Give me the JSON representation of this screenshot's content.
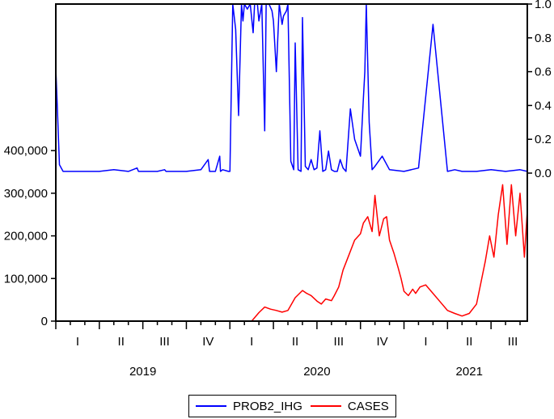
{
  "chart_data": {
    "type": "line",
    "title": "",
    "dual_axis": true,
    "x_range": [
      "2019-01-01",
      "2021-09-15"
    ],
    "x_quarter_labels": [
      {
        "label": "I",
        "year": 2019,
        "quarter": 1
      },
      {
        "label": "II",
        "year": 2019,
        "quarter": 2
      },
      {
        "label": "III",
        "year": 2019,
        "quarter": 3
      },
      {
        "label": "IV",
        "year": 2019,
        "quarter": 4
      },
      {
        "label": "I",
        "year": 2020,
        "quarter": 1
      },
      {
        "label": "II",
        "year": 2020,
        "quarter": 2
      },
      {
        "label": "III",
        "year": 2020,
        "quarter": 3
      },
      {
        "label": "IV",
        "year": 2020,
        "quarter": 4
      },
      {
        "label": "I",
        "year": 2021,
        "quarter": 1
      },
      {
        "label": "II",
        "year": 2021,
        "quarter": 2
      },
      {
        "label": "III",
        "year": 2021,
        "quarter": 3
      }
    ],
    "x_year_labels": [
      "2019",
      "2020",
      "2021"
    ],
    "left_axis": {
      "label": "",
      "ylim": [
        0,
        750000
      ],
      "ticks": [
        0,
        100000,
        200000,
        300000,
        400000
      ],
      "tick_labels": [
        "0",
        "100,000",
        "200,000",
        "300,000",
        "400,000"
      ]
    },
    "right_axis": {
      "label": "",
      "ylim": [
        0,
        1.0
      ],
      "ticks": [
        0.0,
        0.2,
        0.4,
        0.6,
        0.8,
        1.0
      ],
      "tick_labels": [
        "0.0",
        "0.2",
        "0.4",
        "0.6",
        "0.8",
        "1.0"
      ]
    },
    "legend_position": "bottom",
    "grid": false,
    "series": [
      {
        "name": "PROB2_IHG",
        "axis": "right",
        "color": "#0000ff",
        "x_month_offset": [
          0,
          0.1,
          0.25,
          0.5,
          1,
          2,
          3,
          4,
          5,
          5.6,
          5.7,
          6,
          7,
          7.5,
          7.6,
          8,
          9,
          10,
          10.5,
          10.6,
          10.8,
          11,
          11.3,
          11.35,
          11.5,
          11.9,
          12.0,
          12.2,
          12.4,
          12.6,
          12.8,
          12.9,
          13.0,
          13.2,
          13.4,
          13.6,
          13.7,
          13.9,
          14.0,
          14.2,
          14.4,
          14.5,
          14.7,
          14.9,
          15.0,
          15.2,
          15.4,
          15.6,
          15.7,
          15.9,
          16.0,
          16.2,
          16.4,
          16.5,
          16.7,
          16.9,
          17.0,
          17.2,
          17.4,
          17.6,
          17.8,
          18.0,
          18.2,
          18.4,
          18.6,
          18.8,
          19.0,
          19.2,
          19.4,
          19.6,
          19.8,
          20.0,
          20.3,
          20.6,
          21.0,
          21.2,
          21.3,
          21.4,
          21.6,
          21.8,
          22.0,
          22.5,
          23.0,
          24,
          25,
          26,
          27,
          27.5,
          28,
          29,
          30,
          31,
          32,
          32.5
        ],
        "values": [
          0.62,
          0.4,
          0.05,
          0.01,
          0.01,
          0.01,
          0.01,
          0.02,
          0.01,
          0.03,
          0.01,
          0.01,
          0.01,
          0.02,
          0.01,
          0.01,
          0.01,
          0.02,
          0.08,
          0.01,
          0.01,
          0.01,
          0.1,
          0.01,
          0.02,
          0.01,
          0.01,
          1.0,
          0.85,
          0.34,
          1.0,
          0.9,
          1.0,
          0.97,
          1.0,
          0.83,
          1.0,
          1.0,
          0.9,
          1.0,
          0.25,
          1.0,
          1.0,
          0.96,
          0.9,
          0.6,
          1.0,
          0.88,
          0.93,
          0.96,
          1.0,
          0.07,
          0.02,
          0.77,
          0.02,
          0.01,
          0.92,
          0.04,
          0.02,
          0.08,
          0.02,
          0.03,
          0.25,
          0.01,
          0.02,
          0.13,
          0.02,
          0.01,
          0.01,
          0.08,
          0.03,
          0.01,
          0.38,
          0.2,
          0.1,
          0.44,
          0.6,
          1.0,
          0.3,
          0.02,
          0.04,
          0.1,
          0.02,
          0.01,
          0.03,
          0.88,
          0.01,
          0.02,
          0.01,
          0.01,
          0.02,
          0.01,
          0.02,
          0.01
        ]
      },
      {
        "name": "CASES",
        "axis": "left",
        "color": "#ff0000",
        "x_month_offset": [
          0,
          5,
          10,
          13.5,
          14.0,
          14.4,
          14.8,
          15.2,
          15.6,
          16.0,
          16.5,
          17.0,
          17.3,
          17.6,
          18.0,
          18.3,
          18.6,
          19.0,
          19.2,
          19.5,
          19.8,
          20.2,
          20.6,
          21.0,
          21.2,
          21.5,
          21.8,
          22.0,
          22.3,
          22.6,
          22.8,
          23.0,
          23.3,
          23.6,
          23.8,
          24.0,
          24.3,
          24.6,
          24.8,
          25.1,
          25.5,
          26.0,
          26.5,
          27.0,
          27.5,
          28.0,
          28.5,
          29.0,
          29.3,
          29.6,
          29.9,
          30.2,
          30.5,
          30.8,
          31.1,
          31.4,
          31.7,
          32.0,
          32.3,
          32.5
        ],
        "values": [
          0,
          0,
          0,
          0,
          20000,
          33000,
          28000,
          25000,
          21000,
          25000,
          55000,
          72000,
          65000,
          60000,
          47000,
          40000,
          52000,
          48000,
          60000,
          80000,
          120000,
          155000,
          190000,
          205000,
          230000,
          245000,
          210000,
          295000,
          200000,
          240000,
          245000,
          190000,
          160000,
          125000,
          100000,
          70000,
          60000,
          75000,
          65000,
          80000,
          85000,
          65000,
          45000,
          25000,
          18000,
          12000,
          18000,
          40000,
          90000,
          140000,
          200000,
          150000,
          250000,
          320000,
          180000,
          320000,
          200000,
          300000,
          150000,
          260000
        ]
      }
    ]
  },
  "legend": {
    "items": [
      {
        "label": "PROB2_IHG",
        "color": "#0000ff"
      },
      {
        "label": "CASES",
        "color": "#ff0000"
      }
    ]
  }
}
